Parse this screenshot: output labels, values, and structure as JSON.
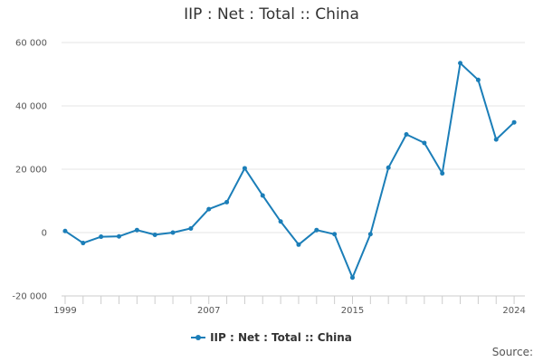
{
  "chart_data": {
    "type": "line",
    "title": "IIP : Net : Total :: China",
    "xlabel": "",
    "ylabel": "",
    "x": [
      1999,
      2000,
      2001,
      2002,
      2003,
      2004,
      2005,
      2006,
      2007,
      2008,
      2009,
      2010,
      2011,
      2012,
      2013,
      2014,
      2015,
      2016,
      2017,
      2018,
      2019,
      2020,
      2021,
      2022,
      2023,
      2024
    ],
    "series": [
      {
        "name": "IIP : Net : Total :: China",
        "values": [
          500,
          -3300,
          -1300,
          -1200,
          800,
          -700,
          0,
          1300,
          7400,
          9600,
          20300,
          11700,
          3500,
          -3800,
          800,
          -500,
          -14200,
          -500,
          20500,
          31000,
          28300,
          18700,
          53500,
          48200,
          29400,
          34800
        ]
      }
    ],
    "xlim": [
      1998.8,
      2024.6
    ],
    "ylim": [
      -20000,
      60000
    ],
    "yticks": [
      -20000,
      0,
      20000,
      40000,
      60000
    ],
    "ytick_labels": [
      "-20 000",
      "0",
      "20 000",
      "40 000",
      "60 000"
    ],
    "xtick_labels": [
      "1999",
      "2007",
      "2015",
      "2024"
    ],
    "xtick_values": [
      1999,
      2007,
      2015,
      2024
    ],
    "grid": true,
    "legend_position": "bottom-center",
    "line_color": "#1b7eb8"
  },
  "source_label": "Source:"
}
